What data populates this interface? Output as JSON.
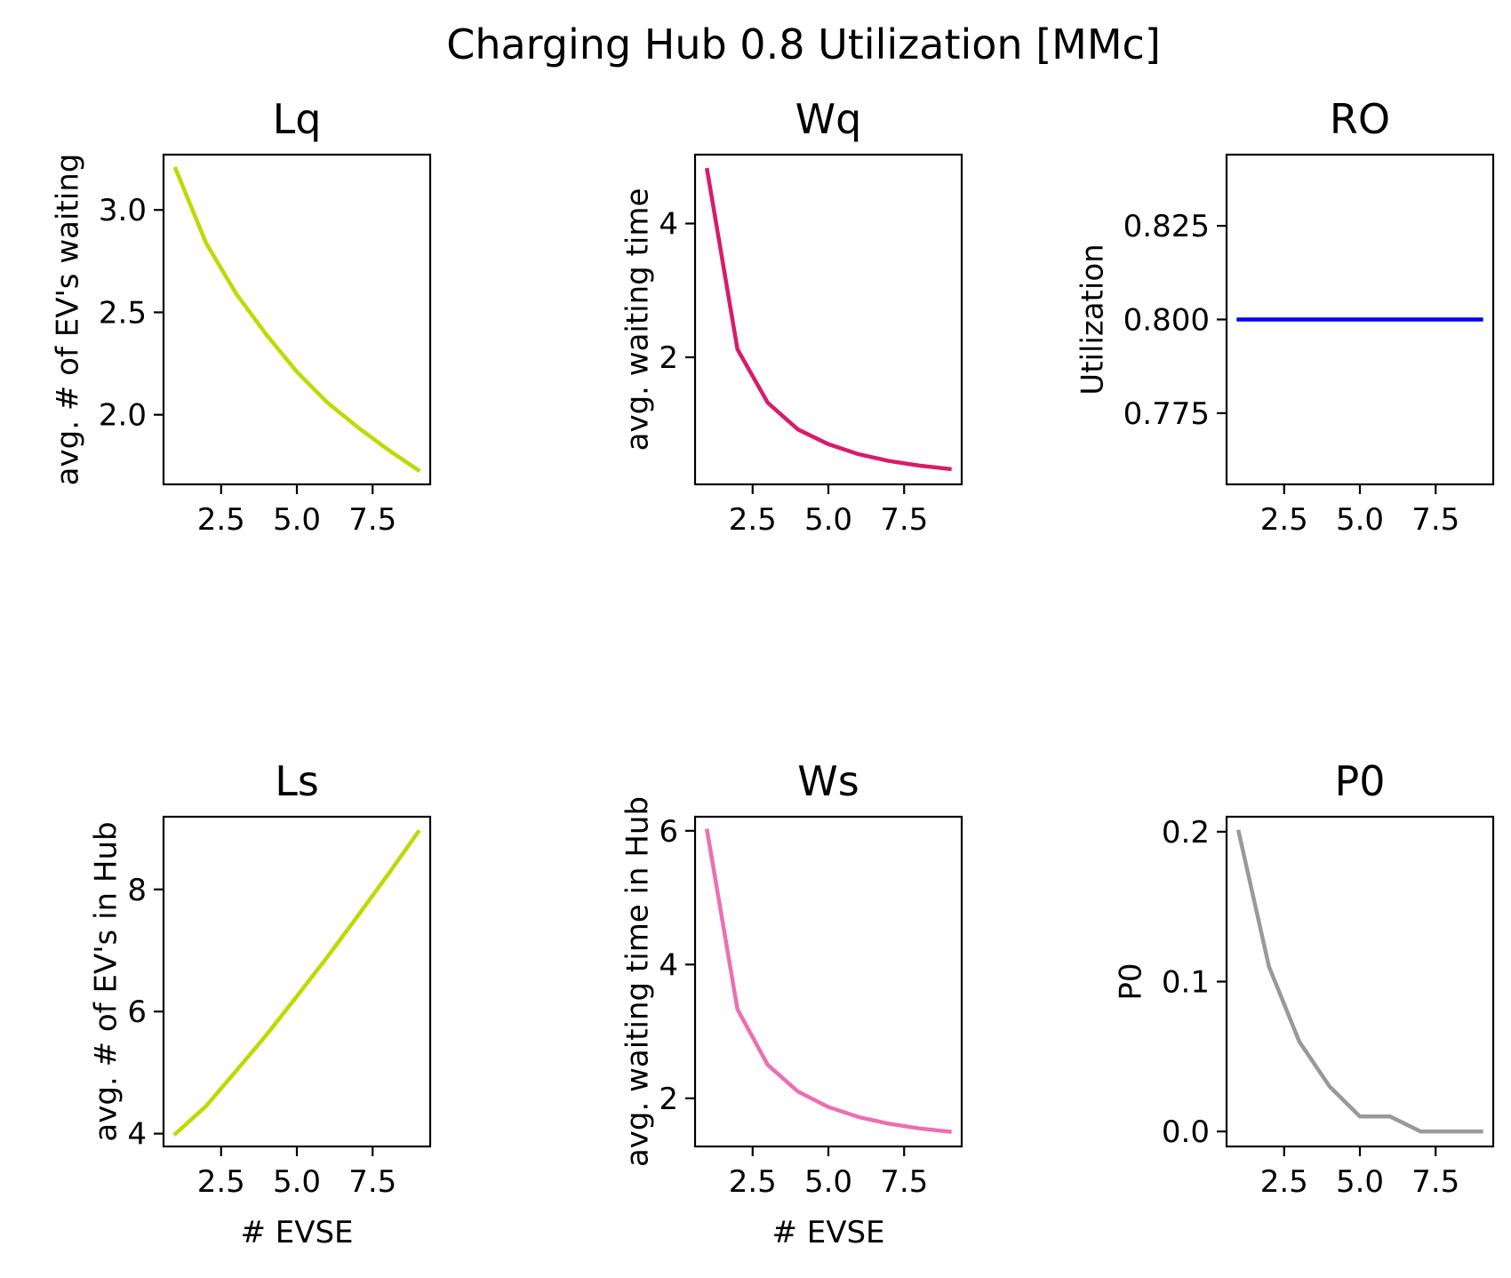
{
  "figure": {
    "title": "Charging Hub 0.8 Utilization [MMc]"
  },
  "chart_data": [
    {
      "type": "line",
      "title": "Lq",
      "xlabel": "",
      "ylabel": "avg. # of EV's waiting",
      "color": "#bcdb00",
      "x": [
        1,
        2,
        3,
        4,
        5,
        6,
        7,
        8,
        9
      ],
      "y": [
        3.2,
        2.84,
        2.59,
        2.39,
        2.21,
        2.06,
        1.94,
        1.83,
        1.73
      ],
      "xlim": [
        0.6,
        9.4
      ],
      "ylim": [
        1.66,
        3.27
      ],
      "xticks": [
        2.5,
        5.0,
        7.5
      ],
      "xtick_labels": [
        "2.5",
        "5.0",
        "7.5"
      ],
      "yticks": [
        2.0,
        2.5,
        3.0
      ],
      "ytick_labels": [
        "2.0",
        "2.5",
        "3.0"
      ]
    },
    {
      "type": "line",
      "title": "Wq",
      "xlabel": "",
      "ylabel": "avg. waiting time",
      "color": "#d81b6a",
      "x": [
        1,
        2,
        3,
        4,
        5,
        6,
        7,
        8,
        9
      ],
      "y": [
        4.8,
        2.12,
        1.32,
        0.92,
        0.7,
        0.55,
        0.45,
        0.38,
        0.33
      ],
      "xlim": [
        0.6,
        9.4
      ],
      "ylim": [
        0.1,
        5.03
      ],
      "xticks": [
        2.5,
        5.0,
        7.5
      ],
      "xtick_labels": [
        "2.5",
        "5.0",
        "7.5"
      ],
      "yticks": [
        2,
        4
      ],
      "ytick_labels": [
        "2",
        "4"
      ]
    },
    {
      "type": "line",
      "title": "RO",
      "xlabel": "",
      "ylabel": "Utilization",
      "color": "#0000ff",
      "x": [
        1,
        2,
        3,
        4,
        5,
        6,
        7,
        8,
        9
      ],
      "y": [
        0.8,
        0.8,
        0.8,
        0.8,
        0.8,
        0.8,
        0.8,
        0.8,
        0.8
      ],
      "xlim": [
        0.6,
        9.4
      ],
      "ylim": [
        0.756,
        0.844
      ],
      "xticks": [
        2.5,
        5.0,
        7.5
      ],
      "xtick_labels": [
        "2.5",
        "5.0",
        "7.5"
      ],
      "yticks": [
        0.775,
        0.8,
        0.825
      ],
      "ytick_labels": [
        "0.775",
        "0.800",
        "0.825"
      ]
    },
    {
      "type": "line",
      "title": "Ls",
      "xlabel": "# EVSE",
      "ylabel": "avg. # of EV's in Hub",
      "color": "#bcdb00",
      "x": [
        1,
        2,
        3,
        4,
        5,
        6,
        7,
        8,
        9
      ],
      "y": [
        4.0,
        4.45,
        5.03,
        5.62,
        6.25,
        6.89,
        7.56,
        8.24,
        8.94
      ],
      "xlim": [
        0.6,
        9.4
      ],
      "ylim": [
        3.79,
        9.19
      ],
      "xticks": [
        2.5,
        5.0,
        7.5
      ],
      "xtick_labels": [
        "2.5",
        "5.0",
        "7.5"
      ],
      "yticks": [
        4,
        6,
        8
      ],
      "ytick_labels": [
        "4",
        "6",
        "8"
      ]
    },
    {
      "type": "line",
      "title": "Ws",
      "xlabel": "# EVSE",
      "ylabel": "avg. waiting time in Hub",
      "color": "#ec6fb2",
      "x": [
        1,
        2,
        3,
        4,
        5,
        6,
        7,
        8,
        9
      ],
      "y": [
        6.0,
        3.33,
        2.5,
        2.1,
        1.87,
        1.72,
        1.62,
        1.55,
        1.5
      ],
      "xlim": [
        0.6,
        9.4
      ],
      "ylim": [
        1.28,
        6.21
      ],
      "xticks": [
        2.5,
        5.0,
        7.5
      ],
      "xtick_labels": [
        "2.5",
        "5.0",
        "7.5"
      ],
      "yticks": [
        2,
        4,
        6
      ],
      "ytick_labels": [
        "2",
        "4",
        "6"
      ]
    },
    {
      "type": "line",
      "title": "P0",
      "xlabel": "",
      "ylabel": "P0",
      "color": "#999999",
      "x": [
        1,
        2,
        3,
        4,
        5,
        6,
        7,
        8,
        9
      ],
      "y": [
        0.2,
        0.11,
        0.06,
        0.03,
        0.01,
        0.01,
        0.0,
        0.0,
        0.0
      ],
      "xlim": [
        0.6,
        9.4
      ],
      "ylim": [
        -0.01,
        0.21
      ],
      "xticks": [
        2.5,
        5.0,
        7.5
      ],
      "xtick_labels": [
        "2.5",
        "5.0",
        "7.5"
      ],
      "yticks": [
        0.0,
        0.1,
        0.2
      ],
      "ytick_labels": [
        "0.0",
        "0.1",
        "0.2"
      ]
    }
  ]
}
